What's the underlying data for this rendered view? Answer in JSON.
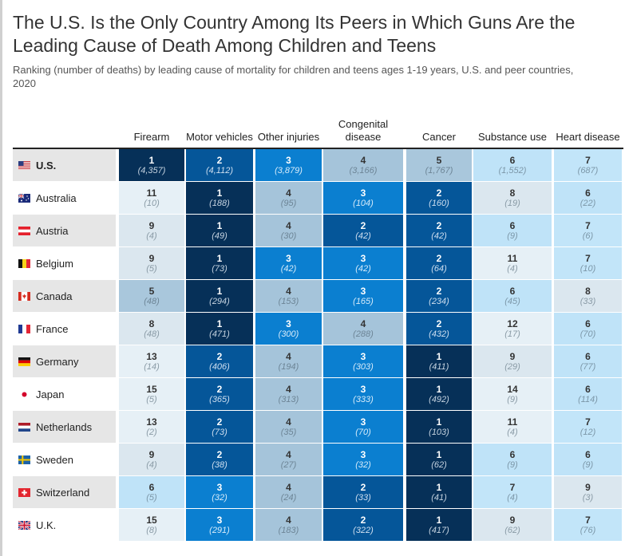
{
  "title": "The U.S. Is the Only Country Among Its Peers in Which Guns Are the Leading Cause of Death Among Children and Teens",
  "subtitle": "Ranking (number of deaths) by leading cause of mortality for children and teens ages 1-19 years, U.S. and peer countries, 2020",
  "chart_data": {
    "type": "table",
    "value_meaning": "rank (number of deaths)",
    "columns": [
      "Firearm",
      "Motor vehicles",
      "Other injuries",
      "Congenital disease",
      "Cancer",
      "Substance use",
      "Heart disease"
    ],
    "rows": [
      {
        "country": "U.S.",
        "flag": "us-flag-icon",
        "ranks": [
          1,
          2,
          3,
          4,
          5,
          6,
          7
        ],
        "deaths": [
          "(4,357)",
          "(4,112)",
          "(3,879)",
          "(3,166)",
          "(1,767)",
          "(1,552)",
          "(687)"
        ]
      },
      {
        "country": "Australia",
        "flag": "australia-flag-icon",
        "ranks": [
          11,
          1,
          4,
          3,
          2,
          8,
          6
        ],
        "deaths": [
          "(10)",
          "(188)",
          "(95)",
          "(104)",
          "(160)",
          "(19)",
          "(22)"
        ]
      },
      {
        "country": "Austria",
        "flag": "austria-flag-icon",
        "ranks": [
          9,
          1,
          4,
          2,
          2,
          6,
          7
        ],
        "deaths": [
          "(4)",
          "(49)",
          "(30)",
          "(42)",
          "(42)",
          "(9)",
          "(6)"
        ]
      },
      {
        "country": "Belgium",
        "flag": "belgium-flag-icon",
        "ranks": [
          9,
          1,
          3,
          3,
          2,
          11,
          7
        ],
        "deaths": [
          "(5)",
          "(73)",
          "(42)",
          "(42)",
          "(64)",
          "(4)",
          "(10)"
        ]
      },
      {
        "country": "Canada",
        "flag": "canada-flag-icon",
        "ranks": [
          5,
          1,
          4,
          3,
          2,
          6,
          8
        ],
        "deaths": [
          "(48)",
          "(294)",
          "(153)",
          "(165)",
          "(234)",
          "(45)",
          "(33)"
        ]
      },
      {
        "country": "France",
        "flag": "france-flag-icon",
        "ranks": [
          8,
          1,
          3,
          4,
          2,
          12,
          6
        ],
        "deaths": [
          "(48)",
          "(471)",
          "(300)",
          "(288)",
          "(432)",
          "(17)",
          "(70)"
        ]
      },
      {
        "country": "Germany",
        "flag": "germany-flag-icon",
        "ranks": [
          13,
          2,
          4,
          3,
          1,
          9,
          6
        ],
        "deaths": [
          "(14)",
          "(406)",
          "(194)",
          "(303)",
          "(411)",
          "(29)",
          "(77)"
        ]
      },
      {
        "country": "Japan",
        "flag": "japan-flag-icon",
        "ranks": [
          15,
          2,
          4,
          3,
          1,
          14,
          6
        ],
        "deaths": [
          "(5)",
          "(365)",
          "(313)",
          "(333)",
          "(492)",
          "(9)",
          "(114)"
        ]
      },
      {
        "country": "Netherlands",
        "flag": "netherlands-flag-icon",
        "ranks": [
          13,
          2,
          4,
          3,
          1,
          11,
          7
        ],
        "deaths": [
          "(2)",
          "(73)",
          "(35)",
          "(70)",
          "(103)",
          "(4)",
          "(12)"
        ]
      },
      {
        "country": "Sweden",
        "flag": "sweden-flag-icon",
        "ranks": [
          9,
          2,
          4,
          3,
          1,
          6,
          6
        ],
        "deaths": [
          "(4)",
          "(38)",
          "(27)",
          "(32)",
          "(62)",
          "(9)",
          "(9)"
        ]
      },
      {
        "country": "Switzerland",
        "flag": "switzerland-flag-icon",
        "ranks": [
          6,
          3,
          4,
          2,
          1,
          7,
          9
        ],
        "deaths": [
          "(5)",
          "(32)",
          "(24)",
          "(33)",
          "(41)",
          "(4)",
          "(3)"
        ]
      },
      {
        "country": "U.K.",
        "flag": "uk-flag-icon",
        "ranks": [
          15,
          3,
          4,
          2,
          1,
          9,
          7
        ],
        "deaths": [
          "(8)",
          "(291)",
          "(183)",
          "(322)",
          "(417)",
          "(62)",
          "(76)"
        ]
      }
    ]
  },
  "colors": {
    "rank_1": "#063058",
    "rank_2": "#055699",
    "rank_3": "#0b7fd0",
    "rank_4": "#a5c4da",
    "rank_5": "#a9c7dc",
    "rank_6": "#bfe3f8",
    "rank_7": "#c2e5f9",
    "rank_8_plus": "#dbe7ef",
    "rank_11_plus": "#e6f0f6",
    "text_dark": "#333333",
    "text_light": "#ffffff"
  }
}
